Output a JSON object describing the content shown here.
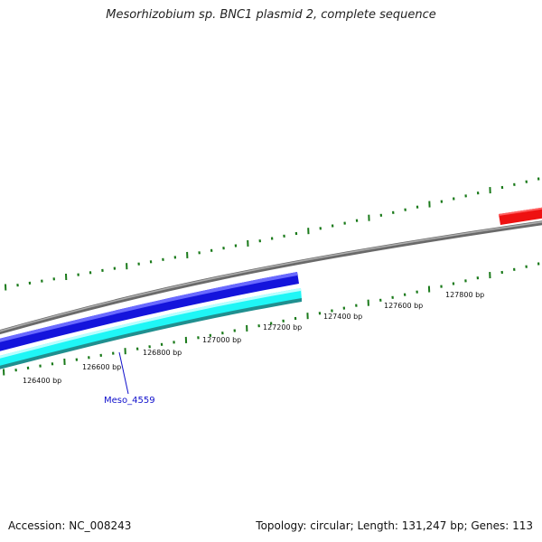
{
  "title": "Mesorhizobium sp. BNC1 plasmid 2, complete sequence",
  "footer": {
    "accession": "Accession: NC_008243",
    "summary": "Topology: circular; Length: 131,247 bp; Genes: 113"
  },
  "ruler_labels": [
    "126400 bp",
    "126600 bp",
    "126800 bp",
    "127000 bp",
    "127200 bp",
    "127400 bp",
    "127600 bp",
    "127800 bp"
  ],
  "gene_label": "Meso_4559",
  "colors": {
    "backbone": "#808080",
    "forward_gene": "#1010e0",
    "reverse_gene": "#00ffff",
    "reverse_gene_edge": "#209090",
    "highlight_gene": "#ee1111",
    "tick": "#1a7a1a",
    "label_line": "#0000cc"
  }
}
